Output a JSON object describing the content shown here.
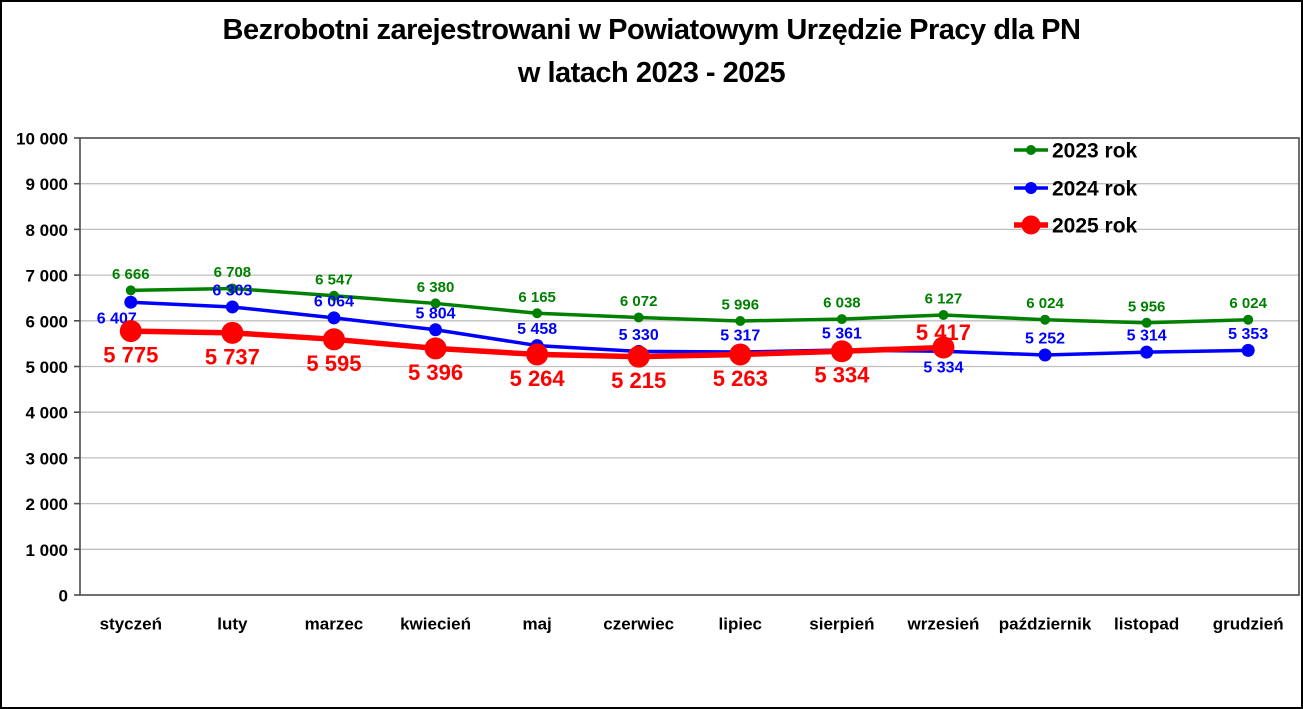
{
  "title": {
    "line1": "Bezrobotni zarejestrowani w Powiatowym Urzędzie Pracy dla PN",
    "line2": "w latach 2023 - 2025"
  },
  "chart_data": {
    "type": "line",
    "title": "Bezrobotni zarejestrowani w Powiatowym Urzędzie Pracy dla PN w latach 2023 - 2025",
    "categories": [
      "styczeń",
      "luty",
      "marzec",
      "kwiecień",
      "maj",
      "czerwiec",
      "lipiec",
      "sierpień",
      "wrzesień",
      "październik",
      "listopad",
      "grudzień"
    ],
    "series": [
      {
        "name": "2023 rok",
        "color": "#008000",
        "values": [
          6666,
          6708,
          6547,
          6380,
          6165,
          6072,
          5996,
          6038,
          6127,
          6024,
          5956,
          6024
        ],
        "label_positions": [
          "above",
          "above",
          "above",
          "above",
          "above",
          "above",
          "above",
          "above",
          "above",
          "above",
          "above",
          "above"
        ],
        "label_dx": [
          0,
          0,
          0,
          0,
          0,
          0,
          0,
          0,
          0,
          0,
          0,
          0
        ]
      },
      {
        "name": "2024 rok",
        "color": "#0000FF",
        "values": [
          6407,
          6303,
          6064,
          5804,
          5458,
          5330,
          5317,
          5361,
          5334,
          5252,
          5314,
          5353
        ],
        "label_positions": [
          "below",
          "above",
          "above",
          "above",
          "above",
          "above",
          "above",
          "above",
          "below",
          "above",
          "above",
          "above"
        ],
        "label_dx": [
          -14,
          0,
          0,
          0,
          0,
          0,
          0,
          0,
          0,
          0,
          0,
          0
        ]
      },
      {
        "name": "2025 rok",
        "color": "#FF0000",
        "values": [
          5775,
          5737,
          5595,
          5396,
          5264,
          5215,
          5263,
          5334,
          5417
        ],
        "label_positions": [
          "below",
          "below",
          "below",
          "below",
          "below",
          "below",
          "below",
          "below",
          "above"
        ],
        "label_dx": [
          0,
          0,
          0,
          0,
          0,
          0,
          0,
          0,
          0
        ]
      }
    ],
    "ylim": [
      0,
      10000
    ],
    "ytick_step": 1000,
    "grid": true,
    "legend_position": "top-right",
    "xlabel": "",
    "ylabel": "",
    "axis_color": "#4D4D4D",
    "gridline_color": "#BFBFBF",
    "number_format": "space-thousands"
  }
}
